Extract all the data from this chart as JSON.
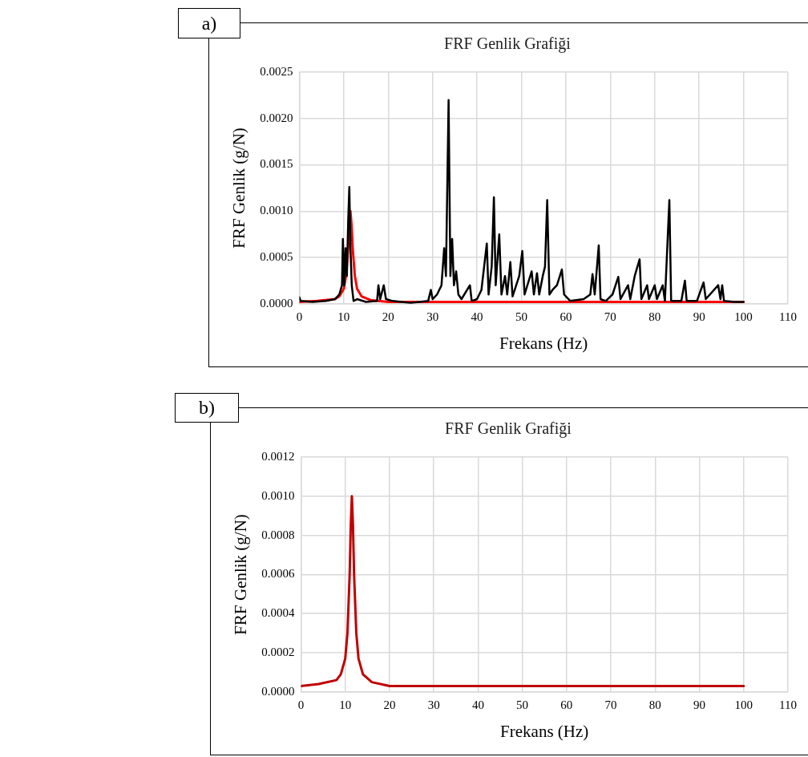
{
  "chart_data": [
    {
      "type": "line",
      "title": "FRF Genlik Grafiği",
      "xlabel": "Frekans (Hz)",
      "ylabel": "FRF Genlik (g/N)",
      "annotations": [
        "a)"
      ],
      "grid": true,
      "legend": false,
      "marker": "none",
      "line_style": "solid",
      "xlim": [
        0,
        110
      ],
      "xticks": [
        0,
        10,
        20,
        30,
        40,
        50,
        60,
        70,
        80,
        90,
        100,
        110
      ],
      "ylim": [
        0,
        0.0025
      ],
      "yticks": [
        {
          "value": 0,
          "label": "0.0000"
        },
        {
          "value": 0.0005,
          "label": "0.0005"
        },
        {
          "value": 0.001,
          "label": "0.0010"
        },
        {
          "value": 0.0015,
          "label": "0.0015"
        },
        {
          "value": 0.002,
          "label": "0.0020"
        },
        {
          "value": 0.0025,
          "label": "0.0025"
        }
      ],
      "series": [
        {
          "color": "#000000",
          "x": [
            0,
            0.3,
            3,
            6,
            8,
            9,
            9.6,
            9.8,
            10.1,
            10.4,
            10.7,
            11,
            11.25,
            11.5,
            11.8,
            12.2,
            13,
            15,
            17.5,
            17.8,
            18.2,
            19,
            19.5,
            21,
            25,
            29,
            29.6,
            30,
            31,
            32,
            32.6,
            33,
            33.6,
            34,
            34.4,
            34.8,
            35.3,
            35.8,
            36.5,
            38.4,
            38.8,
            40,
            41,
            42.2,
            42.6,
            43.3,
            43.8,
            44.2,
            45,
            45.5,
            46.3,
            46.8,
            47.5,
            48,
            49.5,
            50.2,
            50.7,
            52.3,
            52.8,
            53.5,
            54,
            54.8,
            55.3,
            55.8,
            56.3,
            57,
            58,
            59.1,
            59.6,
            61,
            64,
            65.5,
            66,
            66.5,
            67.4,
            67.8,
            69,
            70.5,
            71.8,
            72.3,
            74,
            74.5,
            75.5,
            76.6,
            77,
            78.3,
            78.7,
            80,
            80.5,
            81.8,
            82.3,
            83.3,
            83.7,
            86,
            86.8,
            87.2,
            89.5,
            91,
            91.5,
            94.3,
            94.8,
            95.2,
            95.6,
            98,
            100
          ],
          "values": [
            7e-05,
            3e-05,
            2e-05,
            3e-05,
            5e-05,
            0.0001,
            0.0002,
            0.0007,
            0.0002,
            0.0006,
            0.0003,
            0.0009,
            0.00126,
            0.0006,
            0.0002,
            3e-05,
            5e-05,
            2e-05,
            3e-05,
            0.0002,
            5e-05,
            0.0002,
            5e-05,
            3e-05,
            1e-05,
            3e-05,
            0.00015,
            5e-05,
            0.0001,
            0.0002,
            0.0006,
            0.0003,
            0.0022,
            0.0003,
            0.0007,
            0.0002,
            0.00035,
            0.0001,
            5e-05,
            0.0002,
            3e-05,
            5e-05,
            0.00015,
            0.00065,
            0.0001,
            0.0004,
            0.00115,
            0.0002,
            0.00075,
            0.0001,
            0.0003,
            0.0001,
            0.00045,
            8e-05,
            0.0003,
            0.00057,
            0.0001,
            0.00035,
            0.0001,
            0.00033,
            0.0001,
            0.0003,
            0.0004,
            0.00112,
            0.0001,
            0.00015,
            0.0002,
            0.00037,
            0.0001,
            3e-05,
            5e-05,
            0.0001,
            0.00032,
            0.0001,
            0.00063,
            5e-05,
            3e-05,
            0.0001,
            0.00029,
            5e-05,
            0.0002,
            5e-05,
            0.0003,
            0.00048,
            5e-05,
            0.0002,
            5e-05,
            0.0002,
            5e-05,
            0.0002,
            3e-05,
            0.00112,
            3e-05,
            3e-05,
            0.00025,
            3e-05,
            3e-05,
            0.00023,
            5e-05,
            0.0002,
            5e-05,
            0.0002,
            3e-05,
            2e-05,
            2e-05
          ]
        },
        {
          "color": "#ff0000",
          "x": [
            0,
            4,
            8,
            9,
            10,
            10.5,
            11,
            11.25,
            11.5,
            11.75,
            12,
            12.5,
            13,
            14,
            16,
            20,
            30,
            100
          ],
          "values": [
            2e-05,
            3e-05,
            5e-05,
            8e-05,
            0.00016,
            0.0003,
            0.0006,
            0.00085,
            0.001,
            0.00085,
            0.0006,
            0.0003,
            0.00016,
            8e-05,
            4e-05,
            2e-05,
            2e-05,
            2e-05
          ]
        }
      ]
    },
    {
      "type": "line",
      "title": "FRF Genlik Grafiği",
      "xlabel": "Frekans (Hz)",
      "ylabel": "FRF Genlik (g/N)",
      "annotations": [
        "b)"
      ],
      "grid": true,
      "legend": false,
      "marker": "none",
      "line_style": "solid",
      "xlim": [
        0,
        110
      ],
      "xticks": [
        0,
        10,
        20,
        30,
        40,
        50,
        60,
        70,
        80,
        90,
        100,
        110
      ],
      "ylim": [
        0,
        0.0012
      ],
      "yticks": [
        {
          "value": 0,
          "label": "0.0000"
        },
        {
          "value": 0.0002,
          "label": "0.0002"
        },
        {
          "value": 0.0004,
          "label": "0.0004"
        },
        {
          "value": 0.0006,
          "label": "0.0006"
        },
        {
          "value": 0.0008,
          "label": "0.0008"
        },
        {
          "value": 0.001,
          "label": "0.0010"
        },
        {
          "value": 0.0012,
          "label": "0.0012"
        }
      ],
      "series": [
        {
          "color": "#c00000",
          "x": [
            0,
            4,
            8,
            9,
            10,
            10.5,
            11,
            11.25,
            11.5,
            11.75,
            12,
            12.5,
            13,
            14,
            16,
            20,
            30,
            100
          ],
          "values": [
            3e-05,
            4e-05,
            6e-05,
            9e-05,
            0.00017,
            0.0003,
            0.0006,
            0.00085,
            0.001,
            0.00085,
            0.0006,
            0.0003,
            0.00017,
            9e-05,
            5e-05,
            3e-05,
            3e-05,
            3e-05
          ]
        }
      ]
    }
  ]
}
